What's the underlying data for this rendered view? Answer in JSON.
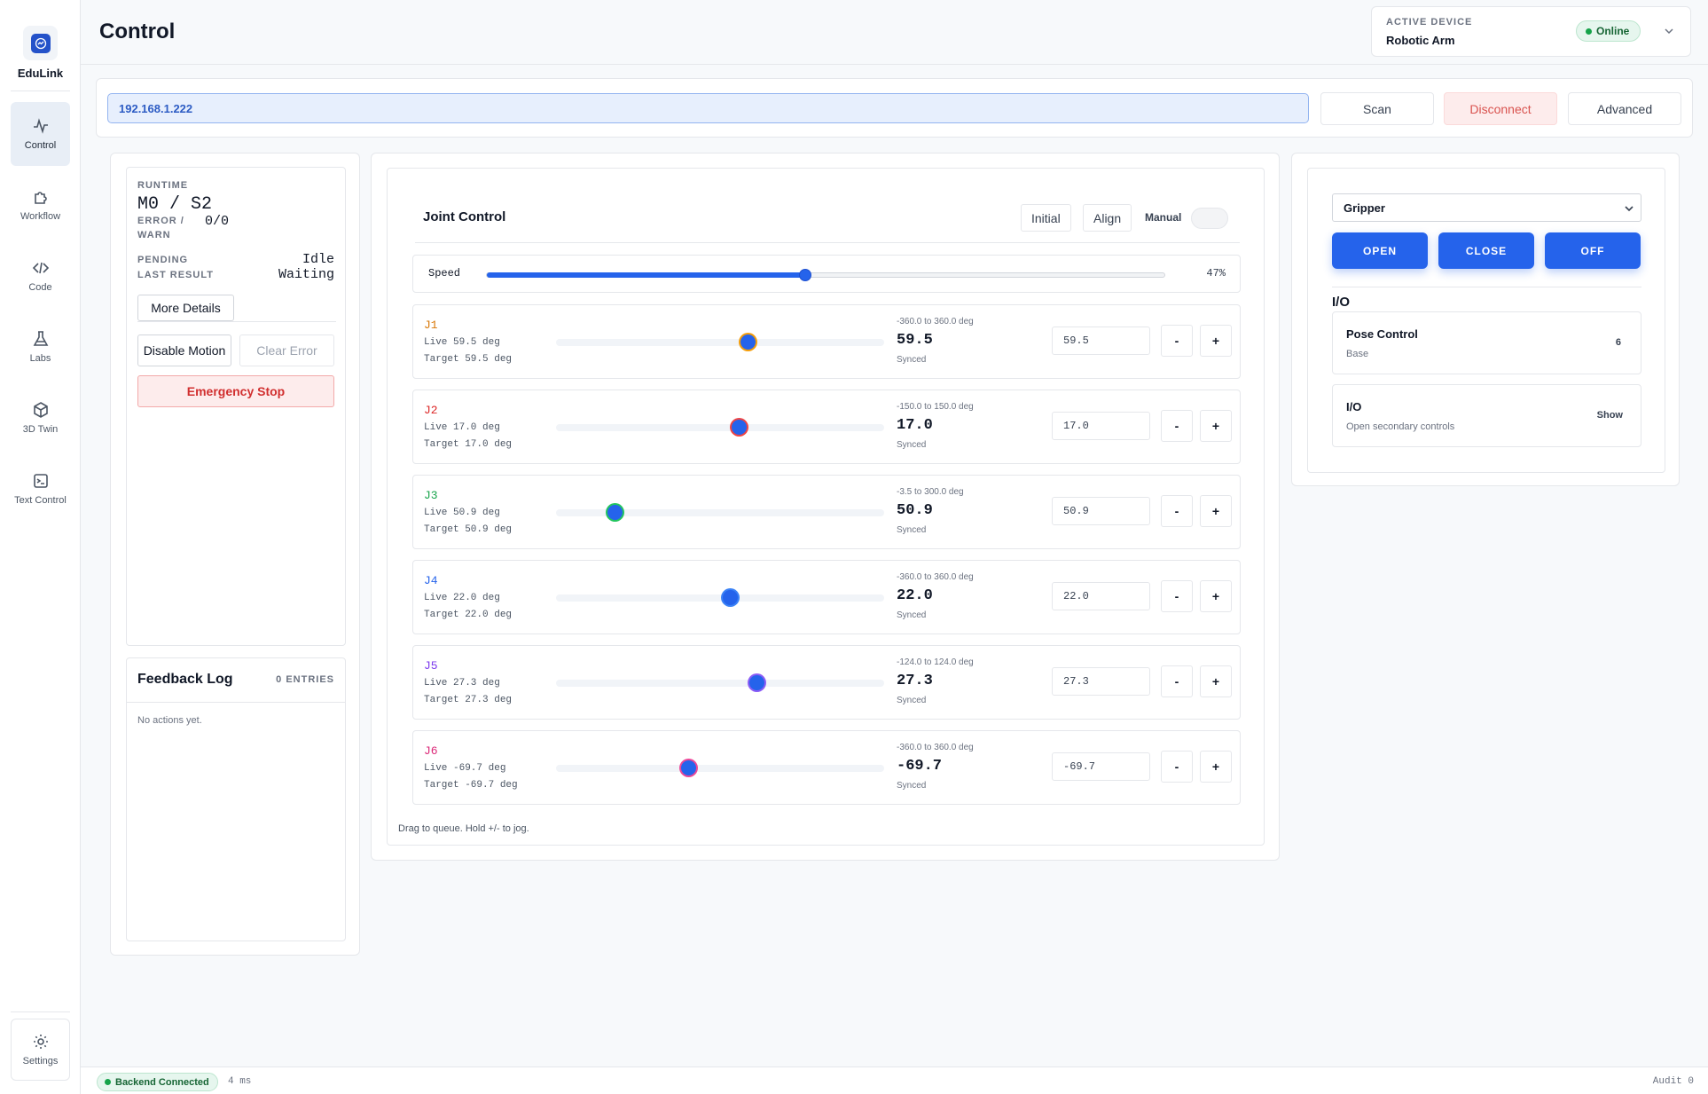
{
  "app": {
    "name": "EduLink",
    "page_title": "Control"
  },
  "sidebar": {
    "items": [
      {
        "label": "Control",
        "icon": "activity-icon",
        "active": true
      },
      {
        "label": "Workflow",
        "icon": "puzzle-icon",
        "active": false
      },
      {
        "label": "Code",
        "icon": "code-icon",
        "active": false
      },
      {
        "label": "Labs",
        "icon": "flask-icon",
        "active": false
      },
      {
        "label": "3D Twin",
        "icon": "cube-icon",
        "active": false
      },
      {
        "label": "Text Control",
        "icon": "terminal-icon",
        "active": false
      }
    ],
    "settings_label": "Settings"
  },
  "device": {
    "label": "ACTIVE DEVICE",
    "name": "Robotic Arm",
    "status": "Online"
  },
  "connection": {
    "ip": "192.168.1.222",
    "scan_label": "Scan",
    "disconnect_label": "Disconnect",
    "advanced_label": "Advanced"
  },
  "runtime": {
    "label": "RUNTIME",
    "value": "M0 / S2",
    "error_label": "ERROR / WARN",
    "error_value": "0/0",
    "pending_label": "PENDING",
    "pending_value": "Idle",
    "last_result_label": "LAST RESULT",
    "last_result_value": "Waiting",
    "more_details_label": "More Details",
    "disable_motion_label": "Disable Motion",
    "clear_error_label": "Clear Error",
    "estop_label": "Emergency Stop"
  },
  "feedback": {
    "title": "Feedback Log",
    "count": "0 ENTRIES",
    "empty": "No actions yet."
  },
  "joint_control": {
    "title": "Joint Control",
    "initial_label": "Initial",
    "align_label": "Align",
    "manual_label": "Manual",
    "manual_on": false,
    "speed_label": "Speed",
    "speed_value": 47,
    "speed_text": "47%",
    "hint": "Drag to queue. Hold +/- to jog.",
    "joints": [
      {
        "name": "J1",
        "color": "#d97706",
        "knob_color": "#2563eb",
        "knob_ring": "#f59e0b",
        "live": "Live 59.5 deg",
        "target": "Target 59.5 deg",
        "range": "-360.0 to 360.0 deg",
        "value": "59.5",
        "min": -360,
        "max": 360,
        "num": 59.5,
        "synced": "Synced",
        "input": "59.5"
      },
      {
        "name": "J2",
        "color": "#dc2626",
        "knob_color": "#2563eb",
        "knob_ring": "#ef4444",
        "live": "Live 17.0 deg",
        "target": "Target 17.0 deg",
        "range": "-150.0 to 150.0 deg",
        "value": "17.0",
        "min": -150,
        "max": 150,
        "num": 17.0,
        "synced": "Synced",
        "input": "17.0"
      },
      {
        "name": "J3",
        "color": "#16a34a",
        "knob_color": "#2563eb",
        "knob_ring": "#22c55e",
        "live": "Live 50.9 deg",
        "target": "Target 50.9 deg",
        "range": "-3.5 to 300.0 deg",
        "value": "50.9",
        "min": -3.5,
        "max": 300,
        "num": 50.9,
        "synced": "Synced",
        "input": "50.9"
      },
      {
        "name": "J4",
        "color": "#2563eb",
        "knob_color": "#2563eb",
        "knob_ring": "#3b82f6",
        "live": "Live 22.0 deg",
        "target": "Target 22.0 deg",
        "range": "-360.0 to 360.0 deg",
        "value": "22.0",
        "min": -360,
        "max": 360,
        "num": 22.0,
        "synced": "Synced",
        "input": "22.0"
      },
      {
        "name": "J5",
        "color": "#7c3aed",
        "knob_color": "#2563eb",
        "knob_ring": "#8b5cf6",
        "live": "Live 27.3 deg",
        "target": "Target 27.3 deg",
        "range": "-124.0 to 124.0 deg",
        "value": "27.3",
        "min": -124,
        "max": 124,
        "num": 27.3,
        "synced": "Synced",
        "input": "27.3"
      },
      {
        "name": "J6",
        "color": "#db2777",
        "knob_color": "#2563eb",
        "knob_ring": "#ec4899",
        "live": "Live -69.7 deg",
        "target": "Target -69.7 deg",
        "range": "-360.0 to 360.0 deg",
        "value": "-69.7",
        "min": -360,
        "max": 360,
        "num": -69.7,
        "synced": "Synced",
        "input": "-69.7"
      }
    ],
    "minus_label": "-",
    "plus_label": "+"
  },
  "gripper": {
    "selected": "Gripper",
    "open_label": "OPEN",
    "close_label": "CLOSE",
    "off_label": "OFF"
  },
  "io": {
    "title": "I/O",
    "pose_control": {
      "title": "Pose Control",
      "desc": "Base",
      "badge": "6"
    },
    "io_card": {
      "title": "I/O",
      "desc": "Open secondary controls",
      "action": "Show"
    }
  },
  "footer": {
    "backend_status": "Backend Connected",
    "latency": "4 ms",
    "audit": "Audit 0"
  }
}
